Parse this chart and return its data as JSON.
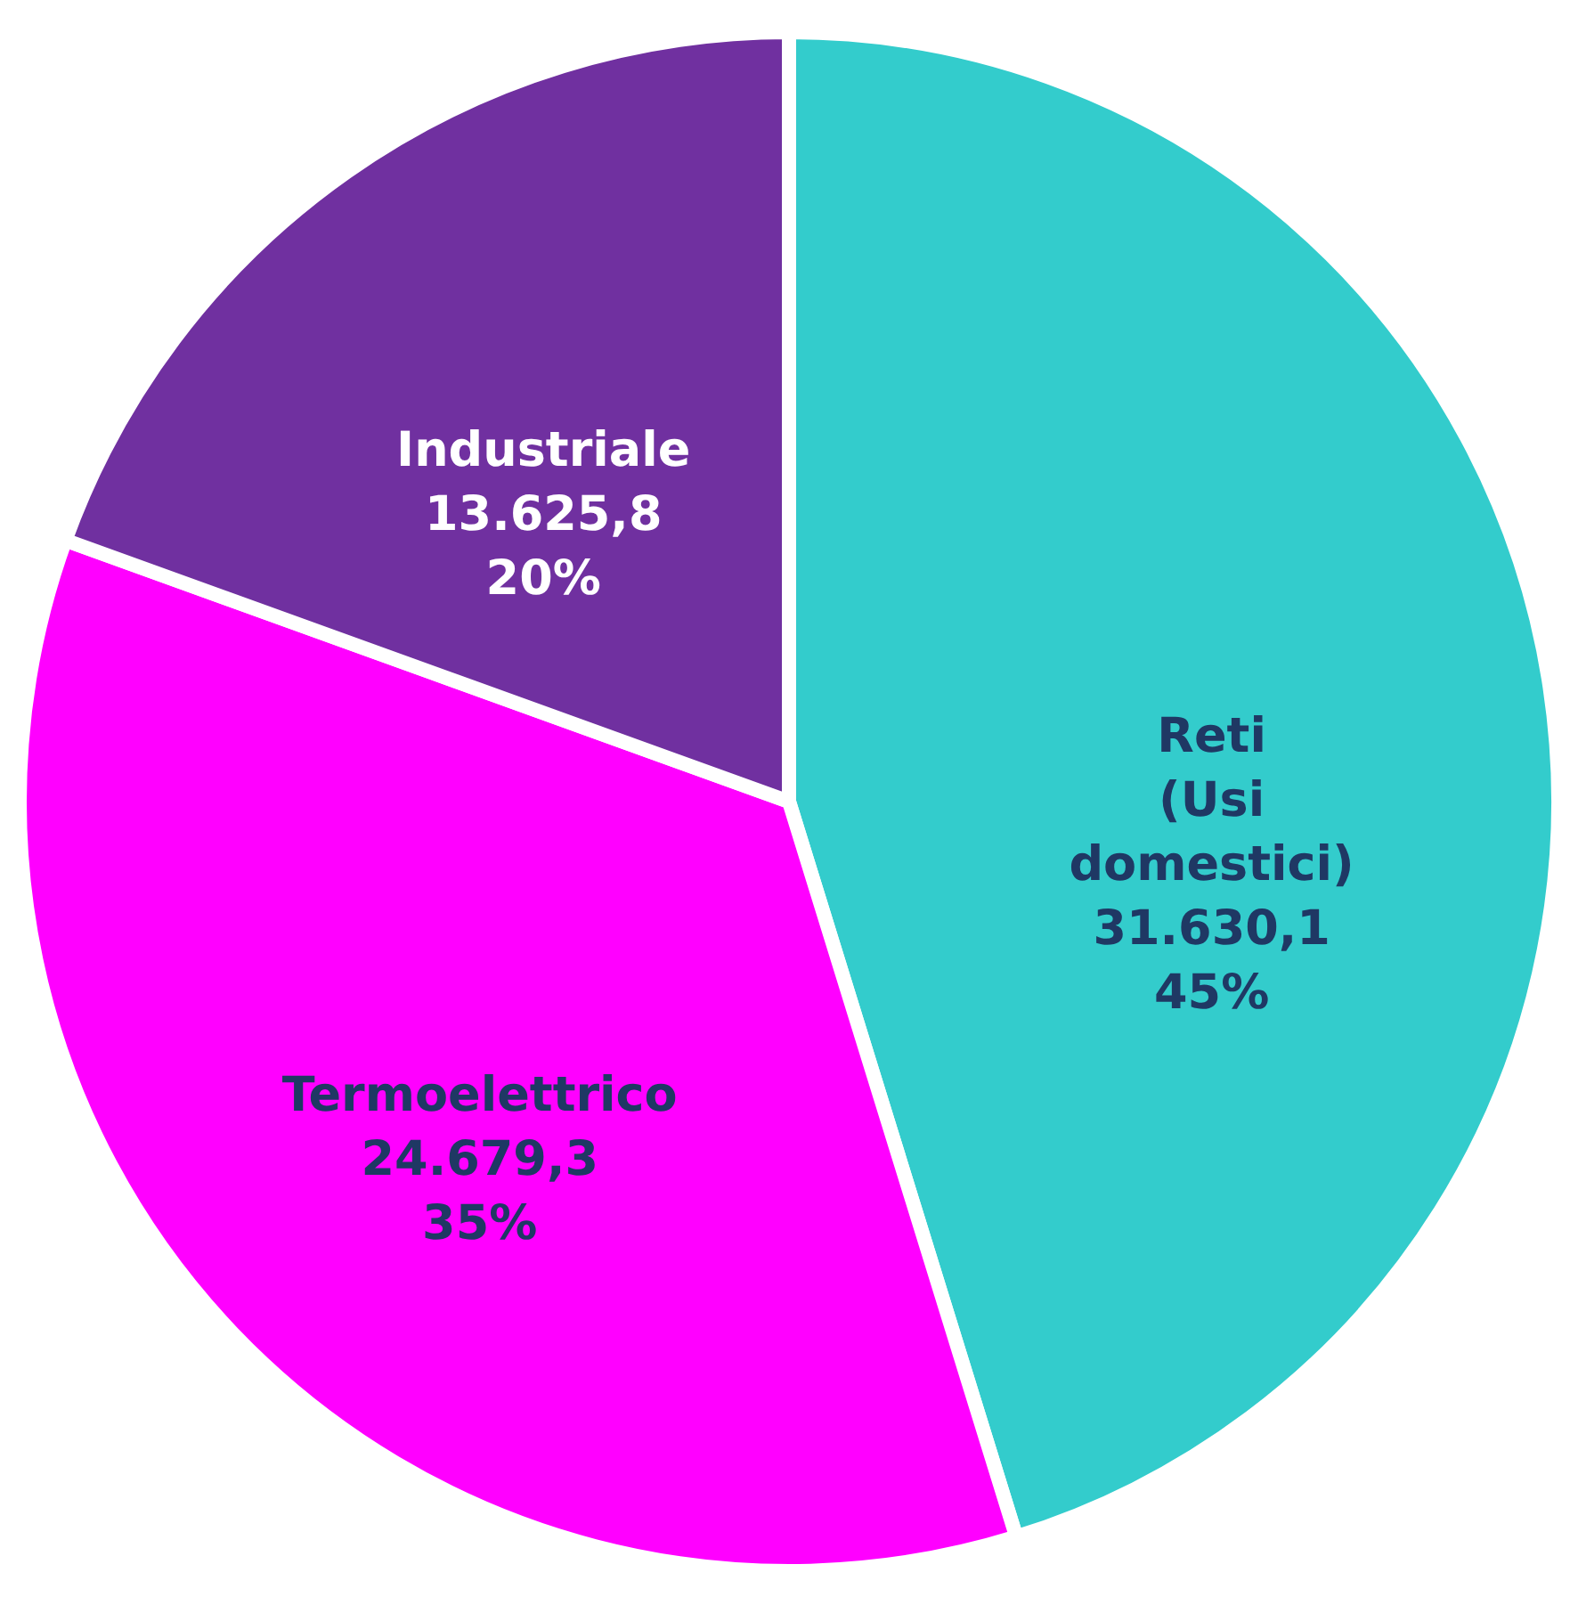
{
  "chart_data": {
    "type": "pie",
    "categories": [
      "Reti (Usi domestici)",
      "Termoelettrico",
      "Industriale"
    ],
    "values": [
      31630.1,
      24679.3,
      13625.8
    ],
    "colors": [
      "#33cccc",
      "#ff00ff",
      "#7030a0"
    ],
    "value_labels": [
      "31.630,1\n45%",
      "24.679,3\n35%",
      "13.625,8\n20%"
    ]
  }
}
